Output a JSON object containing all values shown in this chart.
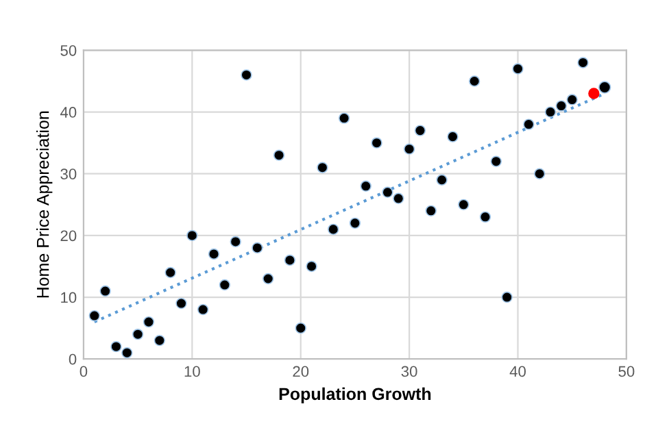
{
  "chart_data": {
    "type": "scatter",
    "xlabel": "Population Growth",
    "ylabel": "Home Price Appreciation",
    "xlim": [
      0,
      50
    ],
    "xticks": [
      0,
      10,
      20,
      30,
      40,
      50
    ],
    "ylim": [
      0,
      50
    ],
    "yticks": [
      0,
      10,
      20,
      30,
      40,
      50
    ],
    "grid": true,
    "marker": "circle",
    "series": [
      {
        "color": "#000000",
        "x": [
          1,
          2,
          3,
          4,
          5,
          6,
          7,
          8,
          9,
          10,
          11,
          12,
          13,
          14,
          15,
          16,
          17,
          18,
          19,
          20,
          21,
          22,
          23,
          24,
          25,
          26,
          27,
          28,
          29,
          30,
          31,
          32,
          33,
          34,
          35,
          36,
          37,
          38,
          39,
          40,
          41,
          42,
          43,
          44,
          45,
          46
        ],
        "values": [
          7,
          11,
          2,
          1,
          4,
          6,
          3,
          14,
          9,
          20,
          8,
          17,
          12,
          19,
          46,
          18,
          13,
          33,
          16,
          5,
          15,
          31,
          21,
          39,
          22,
          28,
          35,
          27,
          26,
          34,
          37,
          24,
          29,
          36,
          25,
          45,
          23,
          32,
          10,
          47,
          38,
          30,
          40,
          41,
          42,
          48
        ]
      },
      {
        "color": "#ff0000",
        "x": [
          47
        ],
        "values": [
          43
        ]
      },
      {
        "color": "#000000",
        "x": [
          48
        ],
        "values": [
          44
        ]
      },
      {
        "type": "line",
        "color": "#5b9bd5",
        "line_style": "dotted",
        "marker": "none",
        "x": [
          1,
          48
        ],
        "values": [
          6,
          43
        ]
      }
    ]
  }
}
